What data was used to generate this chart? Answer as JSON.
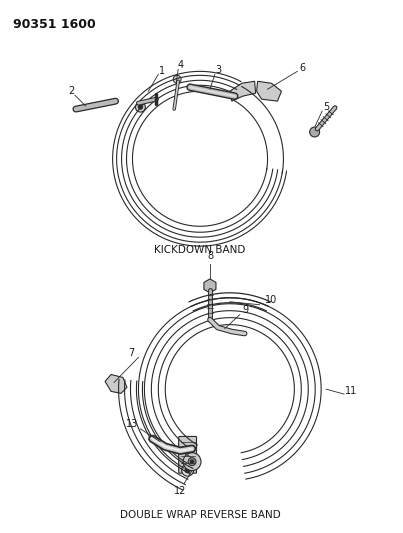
{
  "title_text": "90351 1600",
  "background_color": "#ffffff",
  "line_color": "#2a2a2a",
  "label_color": "#1a1a1a",
  "label_fontsize": 7,
  "section1_label": "KICKDOWN BAND",
  "section2_label": "DOUBLE WRAP REVERSE BAND",
  "fig_width": 4.03,
  "fig_height": 5.33,
  "dpi": 100
}
